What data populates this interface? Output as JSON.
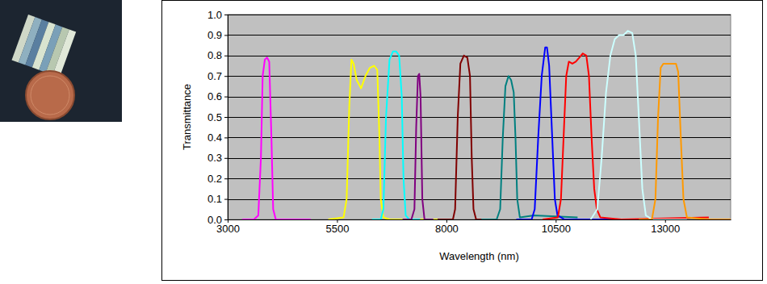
{
  "chart_data": {
    "type": "line",
    "x_label": "Wavelength (nm)",
    "y_label": "Transmittance",
    "xlim": [
      3000,
      14500
    ],
    "xticks": [
      3000,
      5500,
      8000,
      10500,
      13000
    ],
    "ylim": [
      0,
      1
    ],
    "yticks": [
      {
        "value": 0,
        "label": "0.0"
      },
      {
        "value": 0.1,
        "label": "0.1"
      },
      {
        "value": 0.2,
        "label": "0.2"
      },
      {
        "value": 0.3,
        "label": "0.3"
      },
      {
        "value": 0.4,
        "label": "0.4"
      },
      {
        "value": 0.5,
        "label": "0.5"
      },
      {
        "value": 0.6,
        "label": "0.6"
      },
      {
        "value": 0.7,
        "label": "0.7"
      },
      {
        "value": 0.8,
        "label": "0.8"
      },
      {
        "value": 0.9,
        "label": "0.9"
      },
      {
        "value": 1,
        "label": "1.0"
      }
    ],
    "grid": true,
    "series": [
      {
        "color": "#ff00ff",
        "x": [
          3330,
          3600,
          3700,
          3760,
          3800,
          3850,
          3900,
          3950,
          4000,
          4040,
          4100,
          4400,
          4900
        ],
        "values": [
          0,
          0,
          0.02,
          0.3,
          0.7,
          0.78,
          0.79,
          0.77,
          0.4,
          0.05,
          0,
          0,
          0
        ]
      },
      {
        "color": "#ffff00",
        "x": [
          5300,
          5650,
          5720,
          5780,
          5830,
          5880,
          5950,
          6050,
          6150,
          6250,
          6350,
          6420,
          6470,
          6500,
          6560,
          6700,
          8000
        ],
        "values": [
          0,
          0.01,
          0.1,
          0.55,
          0.78,
          0.76,
          0.68,
          0.64,
          0.7,
          0.74,
          0.75,
          0.73,
          0.4,
          0.1,
          0.01,
          0,
          0
        ]
      },
      {
        "color": "#00ffff",
        "x": [
          6300,
          6500,
          6560,
          6620,
          6700,
          6780,
          6850,
          6920,
          6980,
          7020,
          7070,
          7150,
          7400
        ],
        "values": [
          0,
          0,
          0.05,
          0.5,
          0.78,
          0.82,
          0.82,
          0.8,
          0.6,
          0.2,
          0.02,
          0,
          0
        ]
      },
      {
        "color": "#800080",
        "x": [
          7000,
          7200,
          7270,
          7310,
          7350,
          7380,
          7410,
          7450,
          7500,
          7700
        ],
        "values": [
          0,
          0,
          0.05,
          0.45,
          0.7,
          0.71,
          0.6,
          0.1,
          0,
          0
        ]
      },
      {
        "color": "#800000",
        "x": [
          7800,
          8150,
          8200,
          8260,
          8320,
          8400,
          8480,
          8540,
          8580,
          8620,
          8680,
          9000
        ],
        "values": [
          0,
          0,
          0.05,
          0.5,
          0.76,
          0.8,
          0.79,
          0.7,
          0.3,
          0.05,
          0,
          0
        ]
      },
      {
        "color": "#008080",
        "x": [
          8800,
          9150,
          9230,
          9290,
          9350,
          9420,
          9480,
          9540,
          9580,
          9620,
          9680,
          10000,
          11000
        ],
        "values": [
          0,
          0,
          0.05,
          0.4,
          0.65,
          0.7,
          0.68,
          0.62,
          0.4,
          0.1,
          0.01,
          0.02,
          0.01
        ]
      },
      {
        "color": "#0000ff",
        "x": [
          9600,
          9950,
          10020,
          10100,
          10180,
          10260,
          10300,
          10350,
          10420,
          10480,
          10540,
          10700,
          12000
        ],
        "values": [
          0,
          0,
          0.05,
          0.4,
          0.7,
          0.84,
          0.84,
          0.75,
          0.4,
          0.1,
          0.02,
          0,
          0
        ]
      },
      {
        "color": "#ff0000",
        "x": [
          10200,
          10550,
          10620,
          10680,
          10740,
          10800,
          10880,
          10960,
          11040,
          11120,
          11200,
          11260,
          11320,
          11380,
          11440,
          11520,
          12000,
          14000
        ],
        "values": [
          0,
          0.01,
          0.1,
          0.4,
          0.7,
          0.77,
          0.76,
          0.77,
          0.79,
          0.81,
          0.8,
          0.7,
          0.4,
          0.15,
          0.05,
          0.01,
          0,
          0.01
        ]
      },
      {
        "color": "#ccffff",
        "x": [
          11300,
          11450,
          11550,
          11650,
          11750,
          11850,
          11950,
          12050,
          12150,
          12250,
          12330,
          12400,
          12480,
          12560,
          12700,
          13500
        ],
        "values": [
          0,
          0.05,
          0.3,
          0.62,
          0.8,
          0.88,
          0.9,
          0.9,
          0.92,
          0.91,
          0.8,
          0.5,
          0.15,
          0.02,
          0,
          0
        ]
      },
      {
        "color": "#ff9900",
        "x": [
          12400,
          12700,
          12780,
          12840,
          12900,
          12960,
          13050,
          13150,
          13250,
          13300,
          13360,
          13420,
          13500,
          14000,
          14500
        ],
        "values": [
          0,
          0,
          0.1,
          0.5,
          0.74,
          0.76,
          0.76,
          0.76,
          0.76,
          0.72,
          0.4,
          0.1,
          0.01,
          0,
          0
        ]
      }
    ]
  }
}
